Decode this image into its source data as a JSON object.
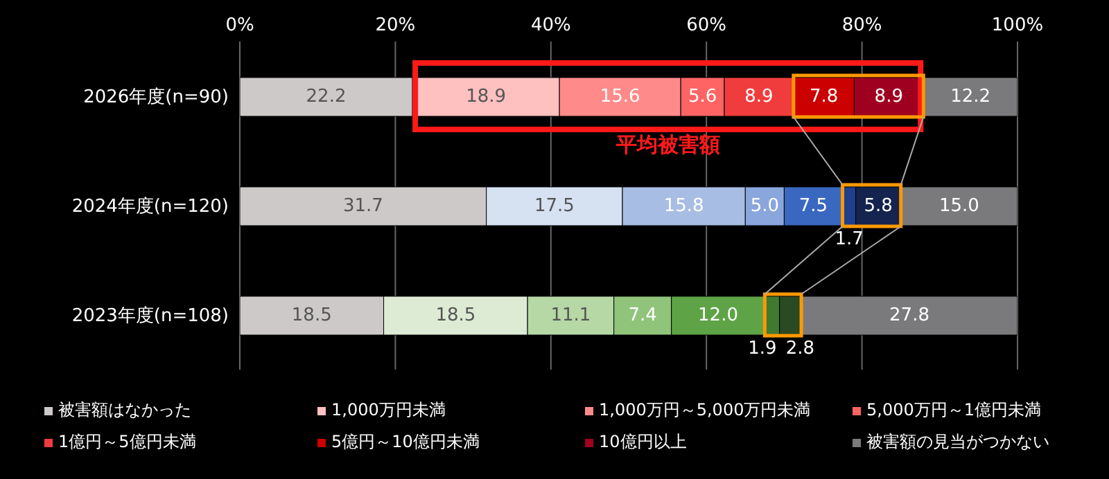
{
  "chart_data": {
    "type": "bar",
    "orientation": "horizontal",
    "stacked": true,
    "categories": [
      "2026年度(n=90)",
      "2024年度(n=120)",
      "2023年度(n=108)"
    ],
    "series": [
      {
        "name": "被害額はなかった",
        "color": "#cdc9c9",
        "colors": [
          "#cdc9c9",
          "#cdc9c9",
          "#cdc9c9"
        ],
        "values": [
          22.2,
          31.7,
          18.5
        ],
        "value_labels": [
          "22.2",
          "31.7",
          "18.5"
        ]
      },
      {
        "name": "1,000万円未満",
        "color": "#ffc0c0",
        "colors": [
          "#ffc0c0",
          "#d6e2f2",
          "#ddebd5"
        ],
        "values": [
          18.9,
          17.5,
          18.5
        ],
        "value_labels": [
          "18.9",
          "17.5",
          "18.5"
        ]
      },
      {
        "name": "1,000万円～5,000万円未満",
        "color": "#ff8a8a",
        "colors": [
          "#ff8a8a",
          "#a8bde3",
          "#b5d8a5"
        ],
        "values": [
          15.6,
          15.8,
          11.1
        ],
        "value_labels": [
          "15.6",
          "15.8",
          "11.1"
        ]
      },
      {
        "name": "5,000万円～1億円未満",
        "color": "#ff6464",
        "colors": [
          "#ff6464",
          "#8aa6dc",
          "#8fc47a"
        ],
        "values": [
          5.6,
          5.0,
          7.4
        ],
        "value_labels": [
          "5.6",
          "5.0",
          "7.4"
        ]
      },
      {
        "name": "1億円～5億円未満",
        "color": "#f03c3c",
        "colors": [
          "#f03c3c",
          "#3a68c0",
          "#5ea447"
        ],
        "values": [
          8.9,
          7.5,
          12.0
        ],
        "value_labels": [
          "8.9",
          "7.5",
          "12.0"
        ]
      },
      {
        "name": "5億円～10億円未満",
        "color": "#cc0000",
        "colors": [
          "#cc0000",
          "#1f3f8f",
          "#3f7a30"
        ],
        "values": [
          7.8,
          1.7,
          1.9
        ],
        "value_labels": [
          "7.8",
          "1.7",
          "1.9"
        ]
      },
      {
        "name": "10億円以上",
        "color": "#a00020",
        "colors": [
          "#a00020",
          "#14244f",
          "#2a4a22"
        ],
        "values": [
          8.9,
          5.8,
          2.8
        ],
        "value_labels": [
          "8.9",
          "5.8",
          "2.8"
        ]
      },
      {
        "name": "被害額の見当がつかない",
        "color": "#7a7a7c",
        "colors": [
          "#7a7a7c",
          "#7a7a7c",
          "#7a7a7c"
        ],
        "values": [
          12.2,
          15.0,
          27.8
        ],
        "value_labels": [
          "12.2",
          "15.0",
          "27.8"
        ]
      }
    ],
    "xlim": [
      0,
      100
    ],
    "xticks": [
      {
        "value": 0,
        "label": "0%"
      },
      {
        "value": 20,
        "label": "20%"
      },
      {
        "value": 40,
        "label": "40%"
      },
      {
        "value": 60,
        "label": "60%"
      },
      {
        "value": 80,
        "label": "80%"
      },
      {
        "value": 100,
        "label": "100%"
      }
    ],
    "grid": "x",
    "legend": "bottom",
    "annotations": [
      "平均被害額"
    ]
  }
}
